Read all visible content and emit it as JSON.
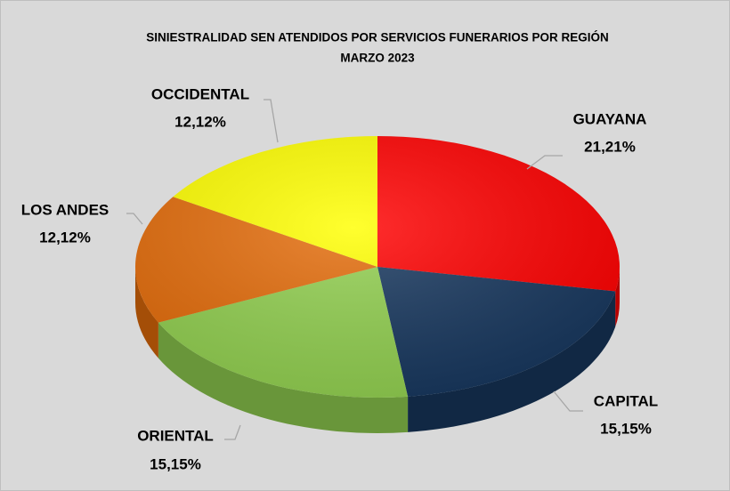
{
  "chart_data": {
    "type": "pie3d",
    "title": "SINIESTRALIDAD SEN ATENDIDOS POR SERVICIOS FUNERARIOS POR REGIÓN",
    "subtitle": "MARZO 2023",
    "categories": [
      "GUAYANA",
      "CAPITAL",
      "ORIENTAL",
      "LOS ANDES",
      "OCCIDENTAL"
    ],
    "values": [
      21.21,
      15.15,
      15.15,
      12.12,
      12.12
    ],
    "value_labels": [
      "21,21%",
      "15,15%",
      "15,15%",
      "12,12%",
      "12,12%"
    ],
    "colors": [
      "#ff0000",
      "#17375e",
      "#92d050",
      "#e46c0a",
      "#ffff00"
    ]
  }
}
